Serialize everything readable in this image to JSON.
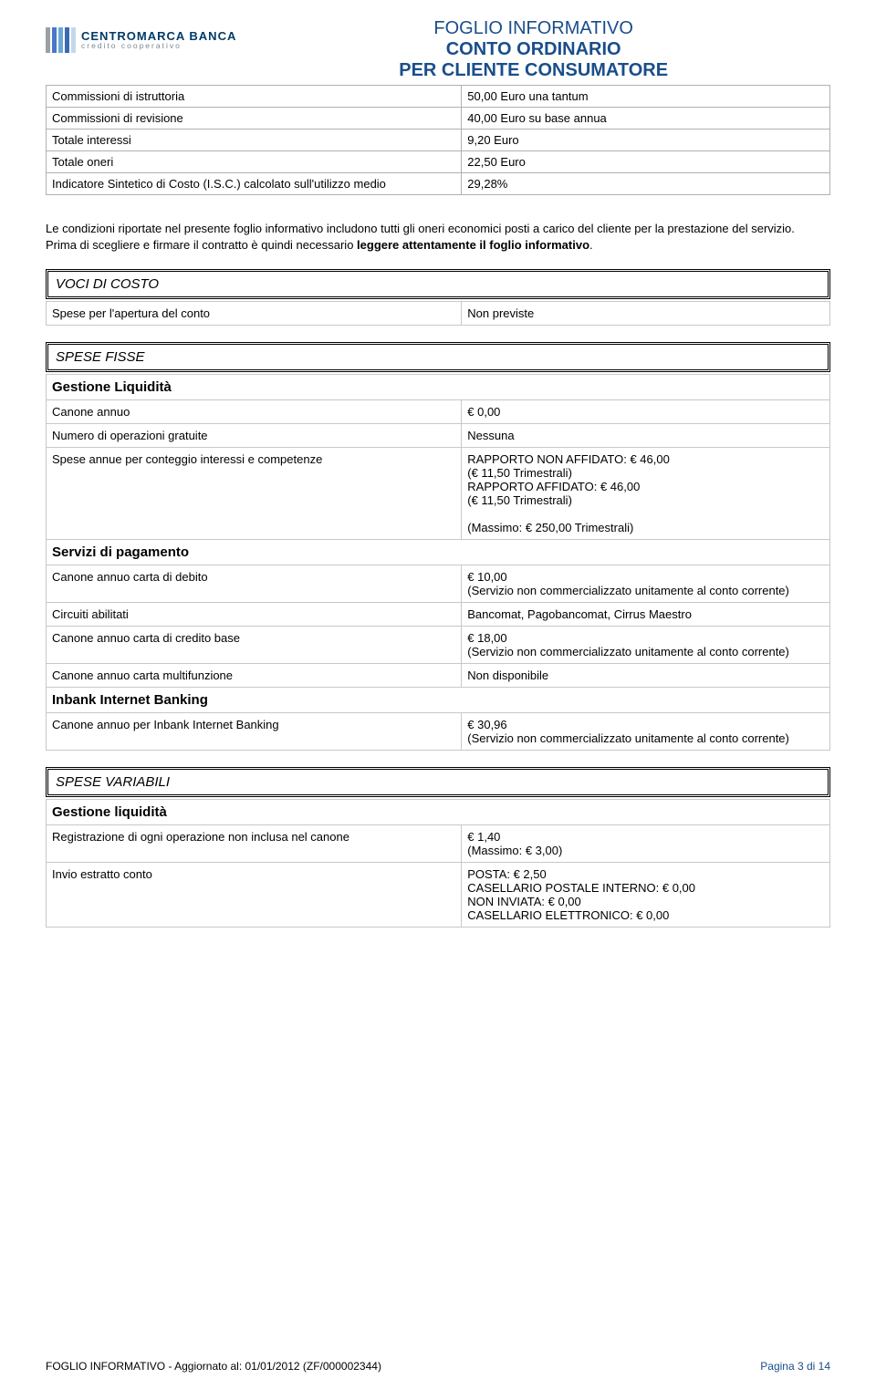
{
  "header": {
    "logo": {
      "bar_colors": [
        "#9aa0a4",
        "#4a78c8",
        "#6aa7d8",
        "#3a6ab0",
        "#c4d8e8"
      ],
      "name_main": "CENTROMARCA BANCA",
      "name_sub": "credito cooperativo"
    },
    "title1": "FOGLIO INFORMATIVO",
    "title2": "CONTO ORDINARIO",
    "title3": "PER CLIENTE CONSUMATORE"
  },
  "top_table": {
    "rows": [
      {
        "label": "Commissioni di istruttoria",
        "value": "50,00 Euro una tantum"
      },
      {
        "label": "Commissioni di revisione",
        "value": "40,00 Euro su base annua"
      },
      {
        "label": "Totale interessi",
        "value": "9,20 Euro"
      },
      {
        "label": "Totale oneri",
        "value": "22,50 Euro"
      },
      {
        "label": "Indicatore Sintetico di Costo (I.S.C.) calcolato sull'utilizzo medio",
        "value": "29,28%"
      }
    ]
  },
  "note": {
    "p1": "Le condizioni riportate nel presente foglio informativo includono tutti gli oneri economici posti a carico del cliente per la prestazione del servizio.",
    "p2_pre": "Prima di scegliere e firmare il contratto è quindi necessario ",
    "p2_bold": "leggere attentamente il foglio informativo",
    "p2_post": "."
  },
  "voci_di_costo": {
    "title": "VOCI DI COSTO",
    "rows": [
      {
        "label": "Spese per l'apertura del conto",
        "value": "Non previste"
      }
    ]
  },
  "spese_fisse": {
    "title": "SPESE FISSE",
    "gestione_liquidita": {
      "heading": "Gestione Liquidità",
      "rows": [
        {
          "label": "Canone annuo",
          "value": "€     0,00"
        },
        {
          "label": "Numero di operazioni gratuite",
          "value": "Nessuna"
        },
        {
          "label": "Spese annue per conteggio interessi e competenze",
          "value": "RAPPORTO NON AFFIDATO: €     46,00\n(€     11,50 Trimestrali)\nRAPPORTO AFFIDATO: €     46,00\n(€     11,50 Trimestrali)\n\n(Massimo: €     250,00 Trimestrali)"
        }
      ]
    },
    "servizi_pagamento": {
      "heading": "Servizi di pagamento",
      "rows": [
        {
          "label": "Canone annuo carta di debito",
          "value": "€     10,00\n(Servizio non commercializzato unitamente al conto corrente)",
          "justify": true
        },
        {
          "label": "Circuiti abilitati",
          "value": "Bancomat, Pagobancomat, Cirrus Maestro"
        },
        {
          "label": "Canone annuo carta di credito base",
          "value": "€     18,00\n(Servizio non commercializzato unitamente al conto corrente)",
          "justify": true
        },
        {
          "label": "Canone annuo carta multifunzione",
          "value": "Non disponibile"
        }
      ]
    },
    "inbank": {
      "heading": "Inbank Internet Banking",
      "rows": [
        {
          "label": "Canone annuo per Inbank Internet Banking",
          "value": "€     30,96\n(Servizio non commercializzato unitamente al conto corrente)",
          "justify": true
        }
      ]
    }
  },
  "spese_variabili": {
    "title": "SPESE VARIABILI",
    "gestione_liquidita": {
      "heading": "Gestione liquidità",
      "rows": [
        {
          "label": "Registrazione di ogni operazione non inclusa nel canone",
          "value": "€     1,40\n(Massimo: €     3,00)"
        },
        {
          "label": "Invio estratto conto",
          "value": "POSTA: €       2,50\nCASELLARIO POSTALE INTERNO: €     0,00\nNON INVIATA: €     0,00\nCASELLARIO ELETTRONICO: €     0,00"
        }
      ]
    }
  },
  "footer": {
    "left": "FOGLIO INFORMATIVO - Aggiornato al: 01/01/2012       (ZF/000002344)",
    "right": "Pagina 3 di 14"
  }
}
